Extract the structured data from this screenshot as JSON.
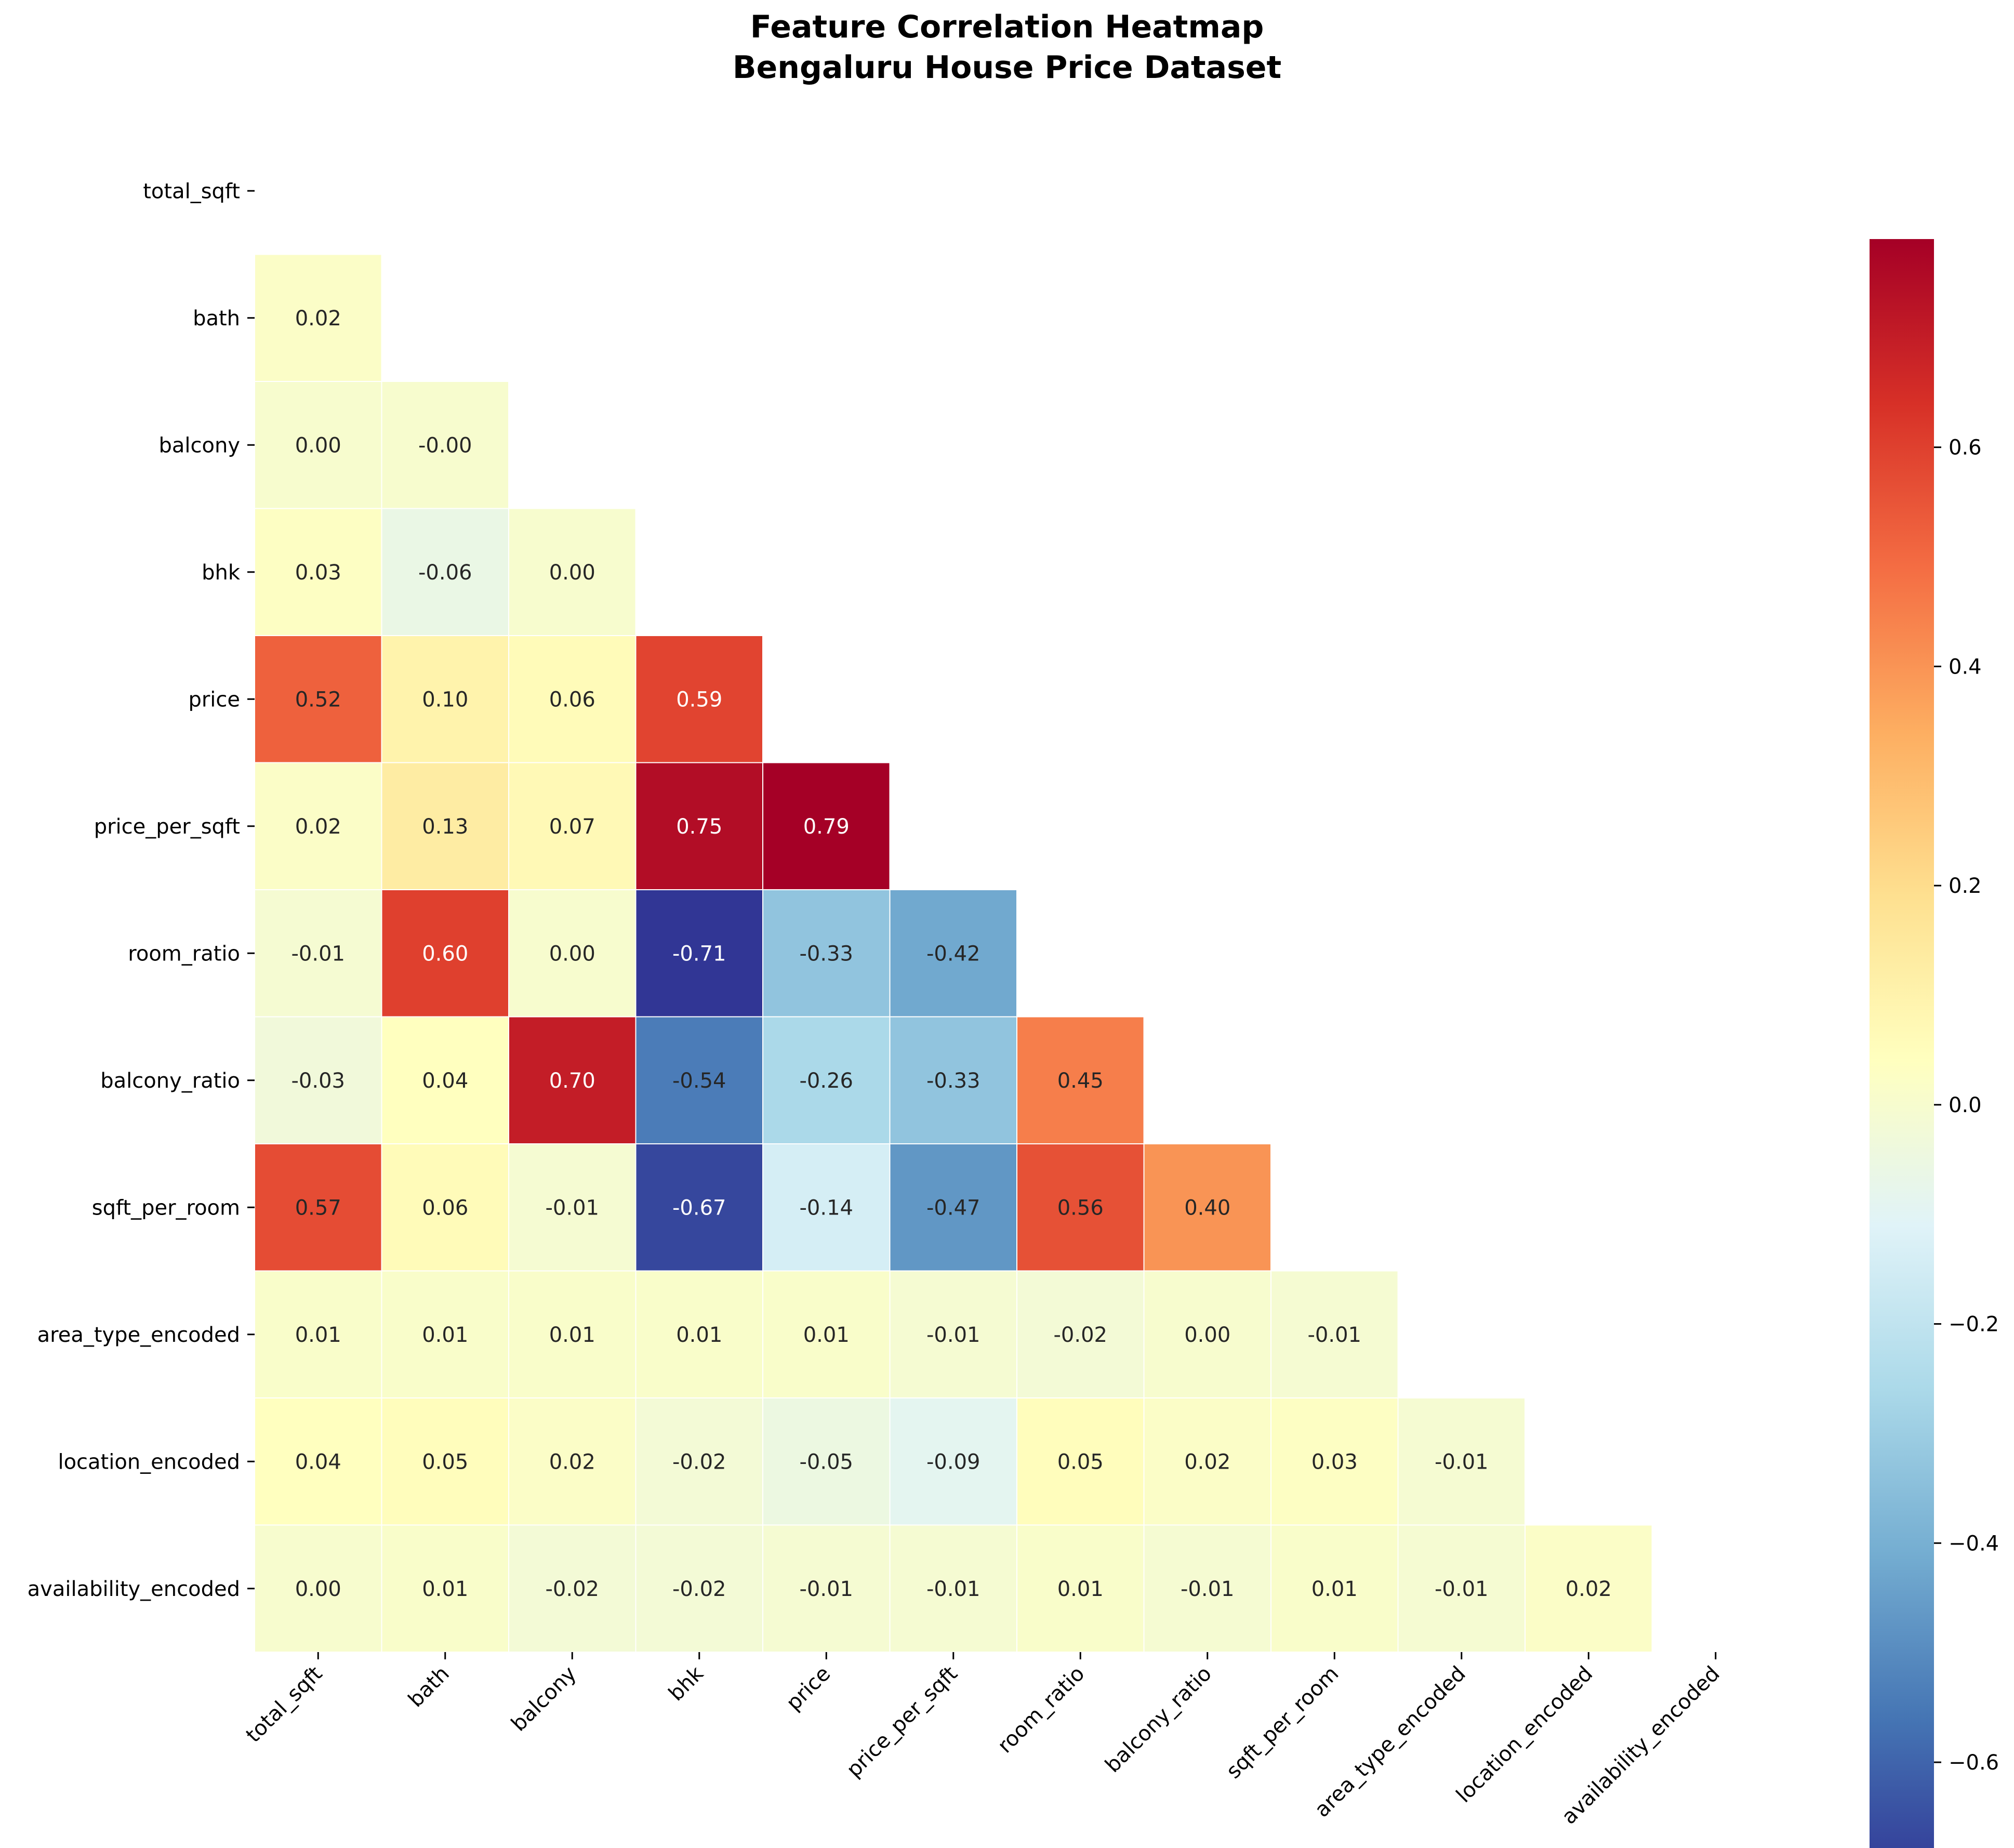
{
  "chart_data": {
    "type": "heatmap",
    "title": "Feature Correlation Heatmap",
    "subtitle": "Bengaluru House Price Dataset",
    "xlabel": "",
    "ylabel": "",
    "features": [
      "total_sqft",
      "bath",
      "balcony",
      "bhk",
      "price",
      "price_per_sqft",
      "room_ratio",
      "balcony_ratio",
      "sqft_per_room",
      "area_type_encoded",
      "location_encoded",
      "availability_encoded"
    ],
    "mask": "upper triangle including diagonal",
    "lower_triangle_values": [
      [],
      [
        0.02
      ],
      [
        0.0,
        -0.0
      ],
      [
        0.03,
        -0.06,
        0.0
      ],
      [
        0.52,
        0.1,
        0.06,
        0.59
      ],
      [
        0.02,
        0.13,
        0.07,
        0.75,
        0.79
      ],
      [
        -0.01,
        0.6,
        0.0,
        -0.71,
        -0.33,
        -0.42
      ],
      [
        -0.03,
        0.04,
        0.7,
        -0.54,
        -0.26,
        -0.33,
        0.45
      ],
      [
        0.57,
        0.06,
        -0.01,
        -0.67,
        -0.14,
        -0.47,
        0.56,
        0.4
      ],
      [
        0.01,
        0.01,
        0.01,
        0.01,
        0.01,
        -0.01,
        -0.02,
        0.0,
        -0.01
      ],
      [
        0.04,
        0.05,
        0.02,
        -0.02,
        -0.05,
        -0.09,
        0.05,
        0.02,
        0.03,
        -0.01
      ],
      [
        0.0,
        0.01,
        -0.02,
        -0.02,
        -0.01,
        -0.01,
        0.01,
        -0.01,
        0.01,
        -0.01,
        0.02
      ]
    ],
    "value_labels": [
      [],
      [
        "0.02"
      ],
      [
        "0.00",
        "-0.00"
      ],
      [
        "0.03",
        "-0.06",
        "0.00"
      ],
      [
        "0.52",
        "0.10",
        "0.06",
        "0.59"
      ],
      [
        "0.02",
        "0.13",
        "0.07",
        "0.75",
        "0.79"
      ],
      [
        "-0.01",
        "0.60",
        "0.00",
        "-0.71",
        "-0.33",
        "-0.42"
      ],
      [
        "-0.03",
        "0.04",
        "0.70",
        "-0.54",
        "-0.26",
        "-0.33",
        "0.45"
      ],
      [
        "0.57",
        "0.06",
        "-0.01",
        "-0.67",
        "-0.14",
        "-0.47",
        "0.56",
        "0.40"
      ],
      [
        "0.01",
        "0.01",
        "0.01",
        "0.01",
        "0.01",
        "-0.01",
        "-0.02",
        "0.00",
        "-0.01"
      ],
      [
        "0.04",
        "0.05",
        "0.02",
        "-0.02",
        "-0.05",
        "-0.09",
        "0.05",
        "0.02",
        "0.03",
        "-0.01"
      ],
      [
        "0.00",
        "0.01",
        "-0.02",
        "-0.02",
        "-0.01",
        "-0.01",
        "0.01",
        "-0.01",
        "0.01",
        "-0.01",
        "0.02"
      ]
    ],
    "colormap": "RdYlBu_r",
    "colormap_stops": [
      "#313695",
      "#4575b4",
      "#74add1",
      "#abd9e9",
      "#e0f3f8",
      "#ffffbf",
      "#fee090",
      "#fdae61",
      "#f46d43",
      "#d73027",
      "#a50026"
    ],
    "color_range": [
      -0.71,
      0.79
    ],
    "colorbar_ticks": [
      -0.6,
      -0.4,
      -0.2,
      0.0,
      0.2,
      0.4,
      0.6
    ],
    "colorbar_tick_labels": [
      "−0.6",
      "−0.4",
      "−0.2",
      "0.0",
      "0.2",
      "0.4",
      "0.6"
    ],
    "cell_border_color": "#ffffff",
    "text_color_dark": "#262626",
    "text_color_light": "#ffffff",
    "grid": false,
    "legend": "colorbar right"
  }
}
